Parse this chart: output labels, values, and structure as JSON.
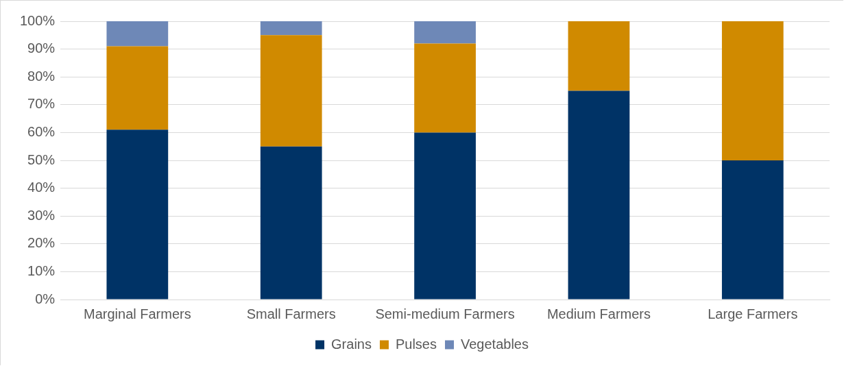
{
  "chart_data": {
    "type": "bar",
    "stacked": true,
    "categories": [
      "Marginal Farmers",
      "Small Farmers",
      "Semi-medium Farmers",
      "Medium Farmers",
      "Large Farmers"
    ],
    "series": [
      {
        "name": "Grains",
        "color": "#003366",
        "values": [
          61,
          55,
          60,
          75,
          50
        ]
      },
      {
        "name": "Pulses",
        "color": "#d08a00",
        "values": [
          30,
          40,
          32,
          25,
          50
        ]
      },
      {
        "name": "Vegetables",
        "color": "#6e88b7",
        "values": [
          9,
          5,
          8,
          0,
          0
        ]
      }
    ],
    "ylim": [
      0,
      100
    ],
    "yticks": [
      {
        "value": 0,
        "label": "0%"
      },
      {
        "value": 10,
        "label": "10%"
      },
      {
        "value": 20,
        "label": "20%"
      },
      {
        "value": 30,
        "label": "30%"
      },
      {
        "value": 40,
        "label": "40%"
      },
      {
        "value": 50,
        "label": "50%"
      },
      {
        "value": 60,
        "label": "60%"
      },
      {
        "value": 70,
        "label": "70%"
      },
      {
        "value": 80,
        "label": "80%"
      },
      {
        "value": 90,
        "label": "90%"
      },
      {
        "value": 100,
        "label": "100%"
      }
    ],
    "grid": "y",
    "legend": "bottom"
  }
}
